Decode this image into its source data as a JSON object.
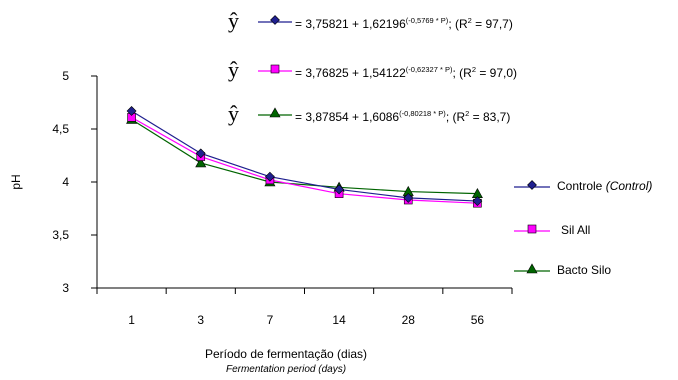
{
  "chart_data": {
    "type": "line",
    "categories": [
      "1",
      "3",
      "7",
      "14",
      "28",
      "56"
    ],
    "series": [
      {
        "name": "Controle",
        "name_en": "(Control)",
        "color": "#1f1f8f",
        "marker": "diamond",
        "values": [
          4.67,
          4.27,
          4.05,
          3.93,
          3.85,
          3.82
        ]
      },
      {
        "name": "Sil All",
        "color": "#ff00ff",
        "marker": "square",
        "values": [
          4.61,
          4.24,
          4.02,
          3.89,
          3.83,
          3.8
        ]
      },
      {
        "name": "Bacto Silo",
        "color": "#006400",
        "marker": "triangle",
        "values": [
          4.59,
          4.18,
          4.0,
          3.95,
          3.91,
          3.89
        ]
      }
    ],
    "ylabel": "pH",
    "xlabel": "Período de fermentação (dias)",
    "xlabel_en": "Fermentation period (days)",
    "ylim": [
      3,
      5
    ],
    "yticks": [
      "3",
      "3,5",
      "4",
      "4,5",
      "5"
    ],
    "grid": false,
    "legend_position": "right",
    "equations": [
      {
        "hat": "ŷ",
        "prefix": "= 3,75821 + 1,62196",
        "exponent": "(-0,5769 * P)",
        "suffix_a": "; (R",
        "r2_sup": "2",
        "suffix_b": " = 97,7)",
        "series_index": 0
      },
      {
        "hat": "ŷ",
        "prefix": "= 3,76825 + 1,54122",
        "exponent": "(-0,62327 * P)",
        "suffix_a": "; (R",
        "r2_sup": "2",
        "suffix_b": " = 97,0)",
        "series_index": 1
      },
      {
        "hat": "ŷ",
        "prefix": "= 3,87854 + 1,6086",
        "exponent": "(-0,80218 * P)",
        "suffix_a": "; (R",
        "r2_sup": "2",
        "suffix_b": " = 83,7)",
        "series_index": 2
      }
    ]
  }
}
